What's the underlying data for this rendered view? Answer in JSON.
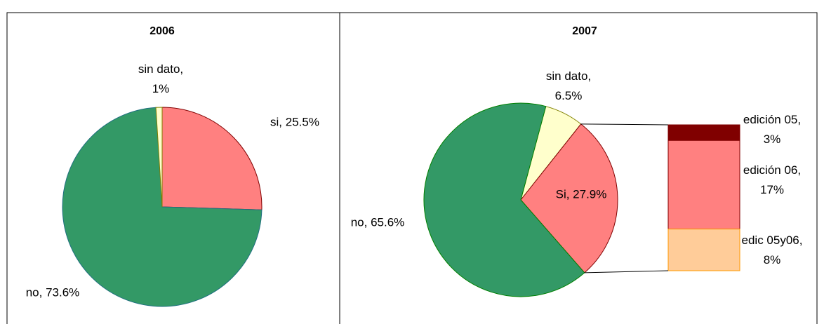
{
  "chart_data": [
    {
      "type": "pie",
      "title": "2006",
      "labels": [
        "si, 25.5%",
        "no, 73.6%",
        "sin dato, 1%"
      ],
      "values": [
        25.5,
        73.6,
        1
      ],
      "colors": [
        "#ff8080",
        "#339966",
        "#ffffcc"
      ]
    },
    {
      "type": "pie",
      "title": "2007",
      "labels": [
        "sin dato, 6.5%",
        "Si, 27.9%",
        "no, 65.6%"
      ],
      "values": [
        6.5,
        27.9,
        65.6
      ],
      "colors": [
        "#ffffcc",
        "#ff8080",
        "#339966"
      ],
      "breakdown": {
        "labels": [
          "edición 05, 3%",
          "edición 06, 17%",
          "edic 05y06, 8%"
        ],
        "values": [
          3,
          17,
          8
        ],
        "colors": [
          "#800000",
          "#ff8080",
          "#ffcc99"
        ]
      }
    }
  ]
}
